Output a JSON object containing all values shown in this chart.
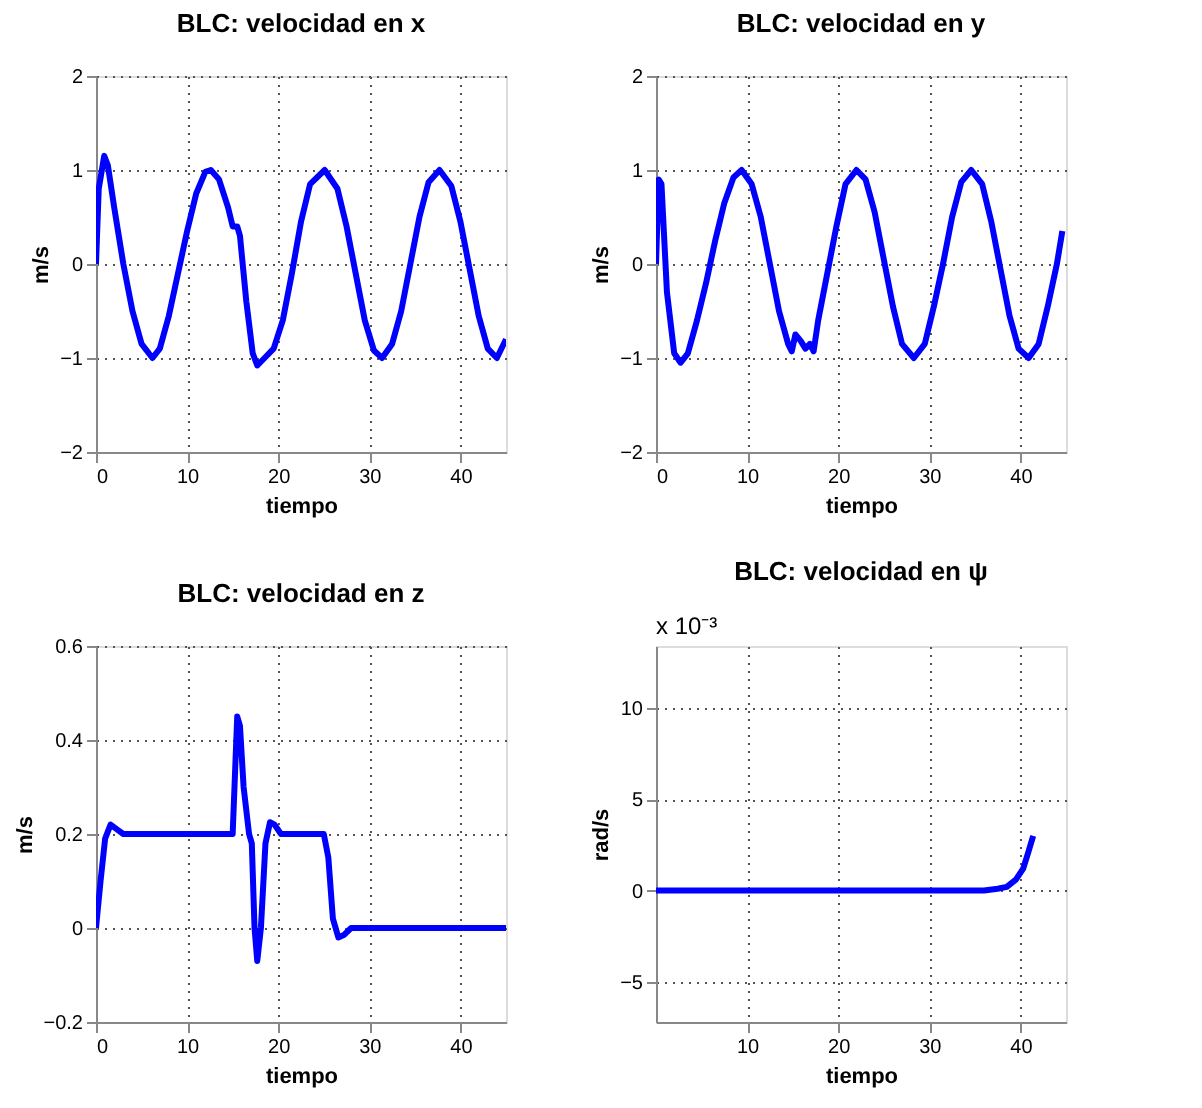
{
  "chart_data": [
    {
      "type": "line",
      "title": "BLC: velocidad en x",
      "xlabel": "tiempo",
      "ylabel": "m/s",
      "xlim": [
        0,
        45
      ],
      "xticks": [
        0,
        10,
        20,
        30,
        40
      ],
      "ylim": [
        -2,
        2
      ],
      "yticks": [
        -2,
        -1,
        0,
        1,
        2
      ],
      "grid": true,
      "line_style": "solid",
      "series": [
        {
          "color": "#0000ff",
          "x": [
            0,
            0.3,
            0.9,
            1.3,
            2,
            3,
            4,
            5,
            6.2,
            7,
            8,
            9,
            10,
            11,
            12,
            12.6,
            13.5,
            14.5,
            15,
            15.5,
            15.8,
            16.5,
            17.2,
            17.7,
            18.5,
            19.5,
            20.5,
            21.5,
            22.5,
            23.5,
            25.1,
            26.5,
            27.5,
            28.5,
            29.5,
            30.5,
            31.4,
            32.5,
            33.5,
            34.5,
            35.5,
            36.5,
            37.7,
            39,
            40,
            41,
            42,
            43,
            44,
            45
          ],
          "values": [
            0,
            0.8,
            1.15,
            1.05,
            0.6,
            0.0,
            -0.5,
            -0.85,
            -1.0,
            -0.9,
            -0.55,
            -0.1,
            0.35,
            0.75,
            0.98,
            1.0,
            0.9,
            0.6,
            0.4,
            0.4,
            0.3,
            -0.4,
            -0.95,
            -1.08,
            -1.0,
            -0.9,
            -0.6,
            -0.1,
            0.45,
            0.85,
            1.0,
            0.8,
            0.4,
            -0.1,
            -0.6,
            -0.92,
            -1.0,
            -0.85,
            -0.5,
            0,
            0.5,
            0.87,
            1.0,
            0.83,
            0.45,
            -0.05,
            -0.55,
            -0.9,
            -1.0,
            -0.8
          ]
        }
      ]
    },
    {
      "type": "line",
      "title": "BLC: velocidad en y",
      "xlabel": "tiempo",
      "ylabel": "m/s",
      "xlim": [
        0,
        45
      ],
      "xticks": [
        0,
        10,
        20,
        30,
        40
      ],
      "ylim": [
        -2,
        2
      ],
      "yticks": [
        -2,
        -1,
        0,
        1,
        2
      ],
      "grid": true,
      "line_style": "solid",
      "series": [
        {
          "color": "#0000ff",
          "x": [
            0,
            0.3,
            0.6,
            1.2,
            2,
            2.7,
            3.5,
            4.5,
            5.5,
            6.5,
            7.5,
            8.5,
            9.4,
            10.5,
            11.5,
            12.5,
            13.5,
            14.5,
            14.9,
            15.3,
            15.9,
            16.4,
            16.9,
            17.3,
            17.8,
            18.8,
            19.8,
            20.8,
            22,
            23,
            24,
            25,
            26,
            27,
            28.3,
            29.5,
            30.5,
            31.5,
            32.5,
            33.5,
            34.6,
            35.8,
            36.8,
            37.8,
            38.8,
            39.8,
            40.9,
            42,
            43,
            44,
            44.6
          ],
          "values": [
            0,
            0.9,
            0.85,
            -0.3,
            -0.95,
            -1.05,
            -0.95,
            -0.6,
            -0.2,
            0.25,
            0.65,
            0.92,
            1.0,
            0.85,
            0.5,
            0.0,
            -0.5,
            -0.85,
            -0.93,
            -0.75,
            -0.82,
            -0.9,
            -0.85,
            -0.93,
            -0.6,
            -0.1,
            0.4,
            0.85,
            1.0,
            0.9,
            0.55,
            0.05,
            -0.45,
            -0.85,
            -1.0,
            -0.85,
            -0.45,
            0.0,
            0.5,
            0.87,
            1.0,
            0.85,
            0.45,
            -0.05,
            -0.55,
            -0.9,
            -1.0,
            -0.85,
            -0.45,
            0.0,
            0.35
          ]
        }
      ]
    },
    {
      "type": "line",
      "title": "BLC: velocidad en z",
      "xlabel": "tiempo",
      "ylabel": "m/s",
      "xlim": [
        0,
        45
      ],
      "xticks": [
        0,
        10,
        20,
        30,
        40
      ],
      "ylim": [
        -0.2,
        0.6
      ],
      "yticks": [
        -0.2,
        0,
        0.2,
        0.4,
        0.6
      ],
      "grid": true,
      "line_style": "solid",
      "series": [
        {
          "color": "#0000ff",
          "x": [
            0,
            0.5,
            1,
            1.6,
            2.3,
            3,
            15,
            15.2,
            15.5,
            15.8,
            16.2,
            16.8,
            17.1,
            17.4,
            17.7,
            18.1,
            18.6,
            19.1,
            19.6,
            20.3,
            25,
            25.5,
            26,
            26.6,
            27.2,
            28,
            45
          ],
          "values": [
            0,
            0.1,
            0.19,
            0.22,
            0.21,
            0.2,
            0.2,
            0.3,
            0.45,
            0.43,
            0.3,
            0.2,
            0.18,
            0.0,
            -0.07,
            0,
            0.18,
            0.225,
            0.22,
            0.2,
            0.2,
            0.15,
            0.02,
            -0.02,
            -0.015,
            0,
            0
          ]
        }
      ]
    },
    {
      "type": "line",
      "title": "BLC: velocidad en ψ",
      "xlabel": "tiempo",
      "ylabel": "rad/s",
      "xlim": [
        0,
        45
      ],
      "xticks": [
        10,
        20,
        30,
        40
      ],
      "ylim": [
        -7.2,
        13.4
      ],
      "yticks": [
        -5,
        0,
        5,
        10
      ],
      "grid": true,
      "line_style": "solid",
      "annotations": [
        "x 10⁻³"
      ],
      "series": [
        {
          "color": "#0000ff",
          "x": [
            0,
            36,
            37.5,
            38.5,
            39.5,
            40.3,
            40.8,
            41.4
          ],
          "values": [
            0,
            0,
            0.1,
            0.2,
            0.6,
            1.2,
            2,
            3
          ]
        }
      ]
    }
  ]
}
